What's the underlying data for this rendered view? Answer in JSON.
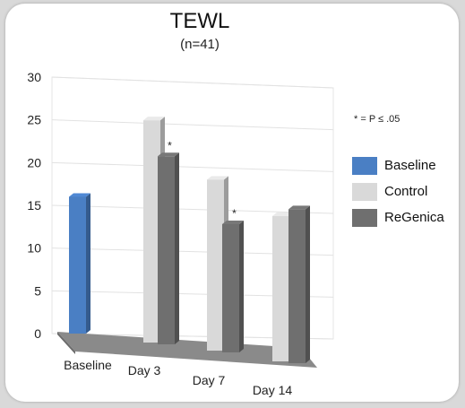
{
  "chart_data": {
    "type": "bar",
    "title": "TEWL",
    "subtitle": "(n=41)",
    "note": "* = P ≤ .05",
    "categories": [
      "Baseline",
      "Day 3",
      "Day 7",
      "Day 14"
    ],
    "series": [
      {
        "name": "Baseline",
        "color": "#4a7fc4",
        "values": [
          16,
          null,
          null,
          null
        ]
      },
      {
        "name": "Control",
        "color": "#d9d9d9",
        "values": [
          null,
          26,
          20,
          17
        ]
      },
      {
        "name": "ReGenica",
        "color": "#6f6f6f",
        "values": [
          null,
          22,
          15,
          18
        ]
      }
    ],
    "annotations": [
      {
        "category": "Day 3",
        "series": "ReGenica",
        "text": "*"
      },
      {
        "category": "Day 7",
        "series": "ReGenica",
        "text": "*"
      }
    ],
    "yticks": [
      0,
      5,
      10,
      15,
      20,
      25,
      30
    ],
    "ylim": [
      0,
      30
    ],
    "grid": true,
    "legend_position": "right",
    "style": "3d-perspective"
  }
}
